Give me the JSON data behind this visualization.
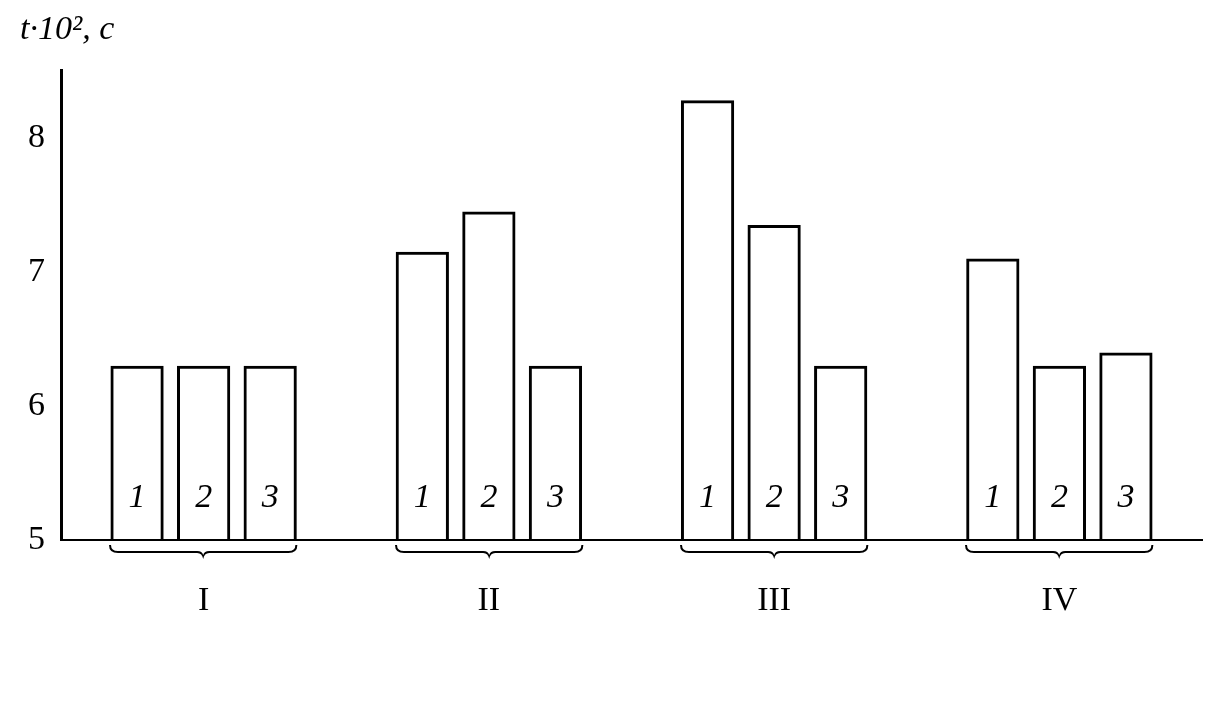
{
  "chart_data": {
    "type": "bar",
    "ylabel": "t·10², с",
    "categories": [
      "I",
      "II",
      "III",
      "IV"
    ],
    "series": [
      {
        "name": "1",
        "color": "#000000",
        "values": [
          6.3,
          7.15,
          8.28,
          7.1
        ]
      },
      {
        "name": "2",
        "color": "#000000",
        "values": [
          6.3,
          7.45,
          7.35,
          6.3
        ]
      },
      {
        "name": "3",
        "color": "#000000",
        "values": [
          6.3,
          6.3,
          6.3,
          6.4
        ]
      }
    ],
    "ylim": [
      5,
      8.5
    ],
    "yticks": [
      5,
      6,
      7,
      8
    ],
    "legend": false
  }
}
